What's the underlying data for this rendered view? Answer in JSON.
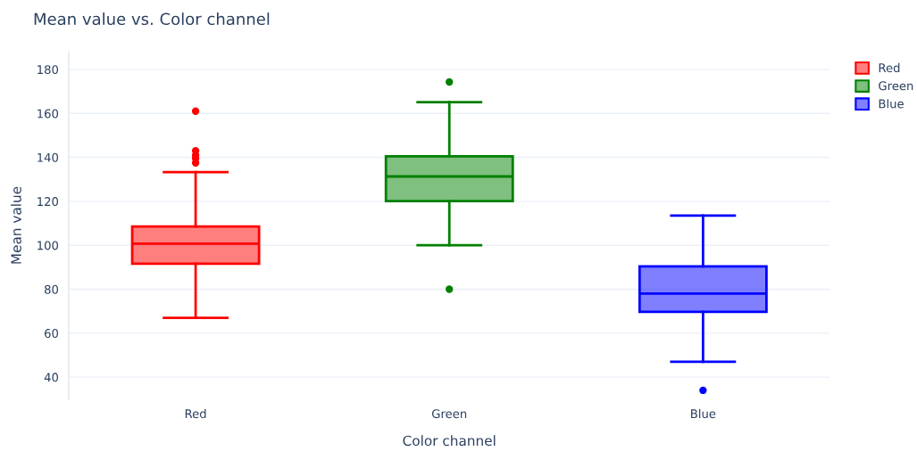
{
  "chart_data": {
    "type": "box",
    "title": "Mean value vs. Color channel",
    "xlabel": "Color channel",
    "ylabel": "Mean value",
    "categories": [
      "Red",
      "Green",
      "Blue"
    ],
    "series": [
      {
        "name": "Red",
        "color": "#ff0000",
        "boxes": [
          {
            "low": 67,
            "q1": 91.6,
            "median": 100.7,
            "q3": 108.5,
            "high": 133.3,
            "outliers": [
              161,
              143,
              141,
              139.5,
              137.5
            ]
          },
          null,
          null
        ]
      },
      {
        "name": "Green",
        "color": "#008000",
        "boxes": [
          null,
          {
            "low": 100,
            "q1": 120.1,
            "median": 131.3,
            "q3": 140.5,
            "high": 165.1,
            "outliers": [
              174.3,
              80
            ]
          },
          null
        ]
      },
      {
        "name": "Blue",
        "color": "#0000ff",
        "boxes": [
          null,
          null,
          {
            "low": 47,
            "q1": 69.7,
            "median": 78,
            "q3": 90.4,
            "high": 113.5,
            "outliers": [
              34
            ]
          }
        ]
      }
    ],
    "ylim": [
      30,
      188
    ],
    "yticks": [
      40,
      60,
      80,
      100,
      120,
      140,
      160,
      180
    ],
    "grid": "y",
    "legend": "top right"
  }
}
